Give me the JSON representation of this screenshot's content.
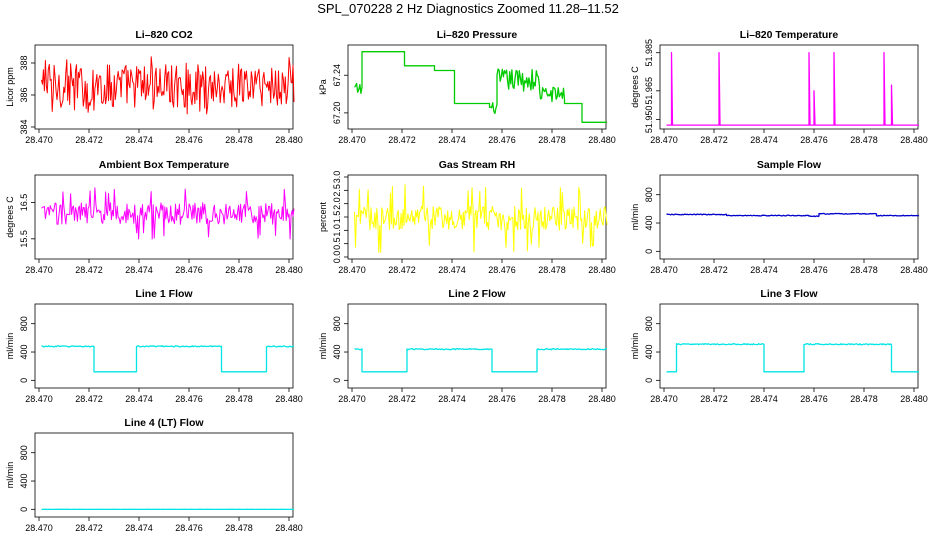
{
  "page": {
    "title": "SPL_070228  2 Hz Diagnostics Zoomed 11.28–11.52"
  },
  "chart_data": [
    {
      "type": "line",
      "title": "Li–820 CO2",
      "ylabel": "Licor ppm",
      "color": "#ff0000",
      "xlim": [
        28.47,
        28.48
      ],
      "ylim": [
        384,
        389
      ],
      "xticks": [
        "28.470",
        "28.472",
        "28.474",
        "28.476",
        "28.478",
        "28.480"
      ],
      "yticks": [
        "384",
        "386",
        "388"
      ],
      "series": [
        {
          "pattern": "noise",
          "center": 386.6,
          "amplitude": 1.4,
          "spike": 1.8,
          "x": [
            28.4701,
            28.4802
          ]
        }
      ]
    },
    {
      "type": "line",
      "title": "Li–820 Pressure",
      "ylabel": "kPa",
      "color": "#00cc00",
      "xlim": [
        28.47,
        28.48
      ],
      "ylim": [
        67.185,
        67.27
      ],
      "xticks": [
        "28.470",
        "28.472",
        "28.474",
        "28.476",
        "28.478",
        "28.480"
      ],
      "yticks": [
        "67.20",
        "67.24"
      ],
      "series": [
        {
          "pattern": "steps",
          "x": [
            28.4701,
            28.4802
          ],
          "steps": [
            [
              28.4701,
              67.225,
              0.007
            ],
            [
              28.4704,
              67.265,
              0
            ],
            [
              28.4721,
              67.25,
              0
            ],
            [
              28.4733,
              67.245,
              0
            ],
            [
              28.4741,
              67.21,
              0
            ],
            [
              28.4755,
              67.205,
              0.006
            ],
            [
              28.4758,
              67.235,
              0.012
            ],
            [
              28.4775,
              67.22,
              0.008
            ],
            [
              28.4785,
              67.21,
              0
            ],
            [
              28.4792,
              67.19,
              0
            ]
          ]
        }
      ]
    },
    {
      "type": "line",
      "title": "Li–820 Temperature",
      "ylabel": "degrees C",
      "color": "#ff00ff",
      "xlim": [
        28.47,
        28.48
      ],
      "ylim": [
        51.946,
        51.988
      ],
      "xticks": [
        "28.470",
        "28.472",
        "28.474",
        "28.476",
        "28.478",
        "28.480"
      ],
      "yticks": [
        "51.950",
        "51.965",
        "51.985"
      ],
      "series": [
        {
          "pattern": "base_spikes",
          "base": 51.947,
          "x": [
            28.4701,
            28.4802
          ],
          "spikes": [
            [
              28.4703,
              51.985
            ],
            [
              28.4722,
              51.985
            ],
            [
              28.4758,
              51.985
            ],
            [
              28.476,
              51.965
            ],
            [
              28.4768,
              51.985
            ],
            [
              28.4788,
              51.985
            ],
            [
              28.4791,
              51.968
            ]
          ]
        }
      ]
    },
    {
      "type": "line",
      "title": "Ambient Box Temperature",
      "ylabel": "degrees C",
      "color": "#ff00ff",
      "xlim": [
        28.47,
        28.48
      ],
      "ylim": [
        15,
        17.2
      ],
      "xticks": [
        "28.470",
        "28.472",
        "28.474",
        "28.476",
        "28.478",
        "28.480"
      ],
      "yticks": [
        "15.5",
        "16.5"
      ],
      "series": [
        {
          "pattern": "noise",
          "center": 16.2,
          "amplitude": 0.3,
          "spike": 0.75,
          "x": [
            28.4701,
            28.4802
          ]
        }
      ]
    },
    {
      "type": "line",
      "title": "Gas Stream RH",
      "ylabel": "percent",
      "color": "#ffff00",
      "xlim": [
        28.47,
        28.48
      ],
      "ylim": [
        0,
        3.0
      ],
      "xticks": [
        "28.470",
        "28.472",
        "28.474",
        "28.476",
        "28.478",
        "28.480"
      ],
      "yticks": [
        "0.0",
        "0.5",
        "1.0",
        "1.5",
        "2.0",
        "2.5",
        "3.0"
      ],
      "series": [
        {
          "pattern": "noise",
          "center": 1.45,
          "amplitude": 0.45,
          "spike": 1.3,
          "x": [
            28.4701,
            28.4802
          ]
        }
      ]
    },
    {
      "type": "line",
      "title": "Sample Flow",
      "ylabel": "ml/min",
      "color": "#0000cc",
      "xlim": [
        28.47,
        28.48
      ],
      "ylim": [
        -80,
        1050
      ],
      "xticks": [
        "28.470",
        "28.472",
        "28.474",
        "28.476",
        "28.478",
        "28.480"
      ],
      "yticks": [
        "0",
        "400",
        "800"
      ],
      "series": [
        {
          "pattern": "steps",
          "x": [
            28.4701,
            28.4802
          ],
          "steps": [
            [
              28.4701,
              520,
              6
            ],
            [
              28.4725,
              505,
              6
            ],
            [
              28.4758,
              495,
              6
            ],
            [
              28.4762,
              530,
              6
            ],
            [
              28.4785,
              505,
              6
            ]
          ]
        }
      ]
    },
    {
      "type": "line",
      "title": "Line 1 Flow",
      "ylabel": "ml/min",
      "color": "#00e5e5",
      "xlim": [
        28.47,
        28.48
      ],
      "ylim": [
        -80,
        1050
      ],
      "xticks": [
        "28.470",
        "28.472",
        "28.474",
        "28.476",
        "28.478",
        "28.480"
      ],
      "yticks": [
        "0",
        "400",
        "800"
      ],
      "series": [
        {
          "pattern": "steps",
          "x": [
            28.4701,
            28.4802
          ],
          "steps": [
            [
              28.4701,
              480,
              8
            ],
            [
              28.4722,
              120,
              0
            ],
            [
              28.4739,
              480,
              8
            ],
            [
              28.4773,
              120,
              0
            ],
            [
              28.4791,
              480,
              8
            ]
          ]
        }
      ]
    },
    {
      "type": "line",
      "title": "Line 2 Flow",
      "ylabel": "ml/min",
      "color": "#00e5e5",
      "xlim": [
        28.47,
        28.48
      ],
      "ylim": [
        -80,
        1050
      ],
      "xticks": [
        "28.470",
        "28.472",
        "28.474",
        "28.476",
        "28.478",
        "28.480"
      ],
      "yticks": [
        "0",
        "400",
        "800"
      ],
      "series": [
        {
          "pattern": "steps",
          "x": [
            28.4701,
            28.4802
          ],
          "steps": [
            [
              28.4701,
              440,
              8
            ],
            [
              28.4704,
              120,
              0
            ],
            [
              28.4722,
              440,
              8
            ],
            [
              28.4756,
              120,
              0
            ],
            [
              28.4774,
              440,
              8
            ]
          ]
        }
      ]
    },
    {
      "type": "line",
      "title": "Line 3 Flow",
      "ylabel": "ml/min",
      "color": "#00e5e5",
      "xlim": [
        28.47,
        28.48
      ],
      "ylim": [
        -80,
        1050
      ],
      "xticks": [
        "28.470",
        "28.472",
        "28.474",
        "28.476",
        "28.478",
        "28.480"
      ],
      "yticks": [
        "0",
        "400",
        "800"
      ],
      "series": [
        {
          "pattern": "steps",
          "x": [
            28.4701,
            28.4802
          ],
          "steps": [
            [
              28.4701,
              120,
              0
            ],
            [
              28.4705,
              510,
              8
            ],
            [
              28.474,
              120,
              0
            ],
            [
              28.4756,
              510,
              8
            ],
            [
              28.4791,
              120,
              0
            ]
          ]
        }
      ]
    },
    {
      "type": "line",
      "title": "Line 4 (LT) Flow",
      "ylabel": "ml/min",
      "color": "#00e5e5",
      "xlim": [
        28.47,
        28.48
      ],
      "ylim": [
        -80,
        1050
      ],
      "xticks": [
        "28.470",
        "28.472",
        "28.474",
        "28.476",
        "28.478",
        "28.480"
      ],
      "yticks": [
        "0",
        "400",
        "800"
      ],
      "series": [
        {
          "pattern": "steps",
          "x": [
            28.4701,
            28.4802
          ],
          "steps": [
            [
              28.4701,
              0,
              1
            ]
          ]
        }
      ]
    }
  ]
}
